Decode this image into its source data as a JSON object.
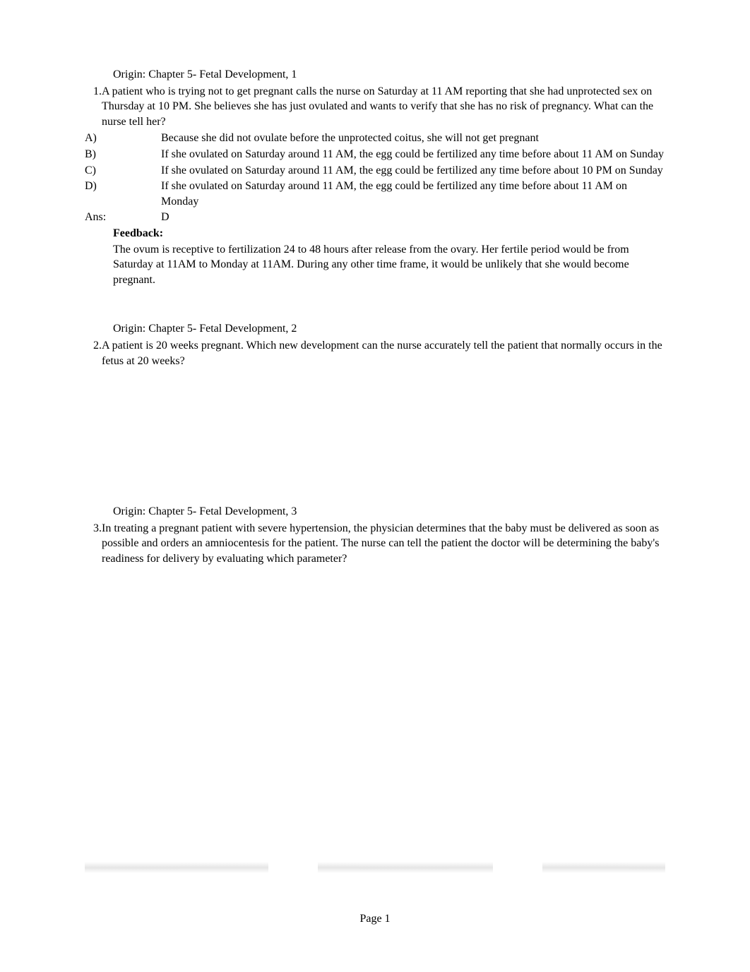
{
  "page": {
    "number": "Page 1",
    "font_family": "Times New Roman",
    "font_size_pt": 12,
    "text_color": "#000000",
    "background_color": "#ffffff"
  },
  "questions": [
    {
      "origin": "Origin: Chapter 5- Fetal Development, 1",
      "number": "1.",
      "stem": "A patient who is trying not to get pregnant calls the nurse on Saturday at 11 AM reporting that she had unprotected sex on Thursday at 10 PM. She believes she has just ovulated and wants to verify that she has no risk of pregnancy. What can the nurse tell her?",
      "options": [
        {
          "letter": "A)",
          "text": "Because she did not ovulate before the unprotected coitus, she will not get pregnant"
        },
        {
          "letter": "B)",
          "text": "If she ovulated on Saturday around 11 AM, the egg could be fertilized any time before about 11 AM on Sunday"
        },
        {
          "letter": "C)",
          "text": "If she ovulated on Saturday around 11 AM, the egg could be fertilized any time before about 10 PM on Sunday"
        },
        {
          "letter": "D)",
          "text": "If she ovulated on Saturday around 11 AM, the egg could be fertilized any time before about 11 AM on Monday"
        }
      ],
      "answer_label": "Ans:",
      "answer": "D",
      "feedback_title": "Feedback:",
      "feedback": "The ovum is receptive to fertilization 24 to 48 hours after release from the ovary. Her fertile period would be from Saturday at 11AM to Monday at 11AM. During any other time frame, it would be unlikely that she would become pregnant."
    },
    {
      "origin": "Origin: Chapter 5- Fetal Development, 2",
      "number": "2.",
      "stem": "A patient is 20 weeks pregnant. Which new development can the nurse accurately tell the patient that normally occurs in the fetus at 20 weeks?"
    },
    {
      "origin": "Origin: Chapter 5- Fetal Development, 3",
      "number": "3.",
      "stem": "In treating a pregnant patient with severe hypertension, the physician determines that the baby must be delivered as soon as possible and orders an amniocentesis for the patient. The nurse can tell the patient the doctor will be determining the baby's readiness for delivery by evaluating which parameter?"
    }
  ]
}
